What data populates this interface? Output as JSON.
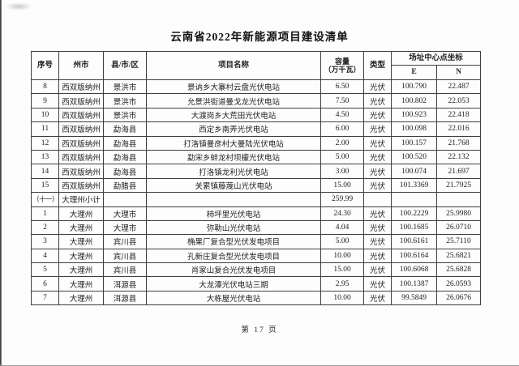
{
  "page": {
    "title": "云南省2022年新能源项目建设清单",
    "footer": "第 17 页"
  },
  "colors": {
    "paper": "#fdfdfd",
    "ink": "#1f1f1f",
    "border": "#3f3f3f"
  },
  "table": {
    "headers": {
      "seq": "序号",
      "prefecture": "州市",
      "county": "县/市/区",
      "project": "项目名称",
      "capacity_line1": "容量",
      "capacity_line2": "（万千瓦）",
      "type": "类型",
      "coords": "场址中心点坐标",
      "e": "E",
      "n": "N"
    },
    "rows": [
      {
        "seq": "8",
        "prefecture": "西双版纳州",
        "county": "景洪市",
        "project": "景讷乡大寨村云盘光伏电站",
        "capacity": "6.50",
        "type": "光伏",
        "e": "100.790",
        "n": "22.487"
      },
      {
        "seq": "9",
        "prefecture": "西双版纳州",
        "county": "景洪市",
        "project": "允景洪街道曼戈龙光伏电站",
        "capacity": "7.50",
        "type": "光伏",
        "e": "100.802",
        "n": "22.053"
      },
      {
        "seq": "10",
        "prefecture": "西双版纳州",
        "county": "景洪市",
        "project": "大渡岗乡大荒田光伏电站",
        "capacity": "4.50",
        "type": "光伏",
        "e": "100.923",
        "n": "22.418"
      },
      {
        "seq": "11",
        "prefecture": "西双版纳州",
        "county": "勐海县",
        "project": "西定乡南弄光伏电站",
        "capacity": "6.00",
        "type": "光伏",
        "e": "100.098",
        "n": "22.016"
      },
      {
        "seq": "12",
        "prefecture": "西双版纳州",
        "county": "勐海县",
        "project": "打洛镇曼彦村大曼陆光伏电站",
        "capacity": "2.00",
        "type": "光伏",
        "e": "100.157",
        "n": "21.768"
      },
      {
        "seq": "13",
        "prefecture": "西双版纳州",
        "county": "勐海县",
        "project": "勐宋乡蚌龙村坝檬光伏电站",
        "capacity": "5.00",
        "type": "光伏",
        "e": "100.520",
        "n": "22.132"
      },
      {
        "seq": "14",
        "prefecture": "西双版纳州",
        "county": "勐海县",
        "project": "打洛镇龙利光伏电站",
        "capacity": "3.00",
        "type": "光伏",
        "e": "100.074",
        "n": "21.697"
      },
      {
        "seq": "15",
        "prefecture": "西双版纳州",
        "county": "勐腊县",
        "project": "关累镇藤蔑山光伏电站",
        "capacity": "15.00",
        "type": "光伏",
        "e": "101.3369",
        "n": "21.7925"
      },
      {
        "seq": "（十一）",
        "prefecture": "大理州小计",
        "county": "",
        "project": "",
        "capacity": "259.99",
        "type": "",
        "e": "",
        "n": "",
        "subtotal": true
      },
      {
        "seq": "1",
        "prefecture": "大理州",
        "county": "大理市",
        "project": "柿坪里光伏电站",
        "capacity": "24.30",
        "type": "光伏",
        "e": "100.2229",
        "n": "25.9980"
      },
      {
        "seq": "2",
        "prefecture": "大理州",
        "county": "大理市",
        "project": "弥勒山光伏电站",
        "capacity": "4.04",
        "type": "光伏",
        "e": "100.1685",
        "n": "26.0710"
      },
      {
        "seq": "3",
        "prefecture": "大理州",
        "county": "宾川县",
        "project": "桷果厂复合型光伏发电项目",
        "capacity": "5.00",
        "type": "光伏",
        "e": "100.6161",
        "n": "25.7110"
      },
      {
        "seq": "4",
        "prefecture": "大理州",
        "county": "宾川县",
        "project": "孔新庄复合型光伏发电项目",
        "capacity": "10.00",
        "type": "光伏",
        "e": "100.6164",
        "n": "25.6821"
      },
      {
        "seq": "5",
        "prefecture": "大理州",
        "county": "宾川县",
        "project": "肖家山复合光伏发电项目",
        "capacity": "15.00",
        "type": "光伏",
        "e": "100.6068",
        "n": "25.6828"
      },
      {
        "seq": "6",
        "prefecture": "大理州",
        "county": "洱源县",
        "project": "大龙潭光伏电站三期",
        "capacity": "2.95",
        "type": "光伏",
        "e": "100.1387",
        "n": "26.0593"
      },
      {
        "seq": "7",
        "prefecture": "大理州",
        "county": "洱源县",
        "project": "大栋屋光伏电站",
        "capacity": "10.00",
        "type": "光伏",
        "e": "99.5849",
        "n": "26.0676"
      }
    ]
  }
}
